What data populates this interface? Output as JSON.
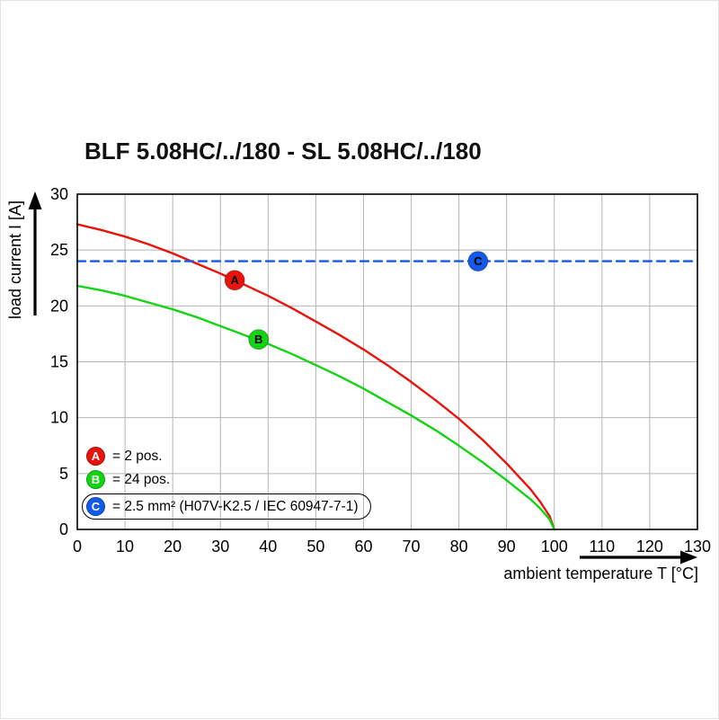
{
  "chart_data": {
    "type": "line",
    "title": "BLF 5.08HC/../180 - SL 5.08HC/../180",
    "xlabel": "ambient temperature T [°C]",
    "ylabel": "load current I [A]",
    "xlim": [
      0,
      130
    ],
    "ylim": [
      0,
      30
    ],
    "xticks": [
      0,
      10,
      20,
      30,
      40,
      50,
      60,
      70,
      80,
      90,
      100,
      110,
      120,
      130
    ],
    "yticks": [
      0,
      5,
      10,
      15,
      20,
      25,
      30
    ],
    "grid": true,
    "legend_position": "bottom-left-inside",
    "series": [
      {
        "name": "A",
        "legend_label": "= 2 pos.",
        "color": "#e8140b",
        "style": "solid",
        "marker": {
          "x": 33,
          "y": 22.3
        },
        "x": [
          0,
          5,
          10,
          15,
          20,
          25,
          30,
          35,
          40,
          45,
          50,
          55,
          60,
          65,
          70,
          75,
          80,
          85,
          90,
          95,
          97,
          99,
          100
        ],
        "y": [
          27.3,
          26.8,
          26.2,
          25.5,
          24.7,
          23.8,
          22.9,
          21.9,
          20.9,
          19.8,
          18.6,
          17.4,
          16.1,
          14.7,
          13.2,
          11.6,
          9.9,
          8.0,
          5.9,
          3.6,
          2.5,
          1.2,
          0
        ]
      },
      {
        "name": "B",
        "legend_label": "= 24 pos.",
        "color": "#12d412",
        "style": "solid",
        "marker": {
          "x": 38,
          "y": 17
        },
        "x": [
          0,
          5,
          10,
          15,
          20,
          25,
          30,
          35,
          40,
          45,
          50,
          55,
          60,
          65,
          70,
          75,
          80,
          85,
          90,
          95,
          97,
          99,
          100
        ],
        "y": [
          21.8,
          21.4,
          20.9,
          20.3,
          19.7,
          19.0,
          18.2,
          17.4,
          16.6,
          15.7,
          14.7,
          13.7,
          12.6,
          11.4,
          10.2,
          8.9,
          7.5,
          6.0,
          4.4,
          2.7,
          1.9,
          0.9,
          0
        ]
      },
      {
        "name": "C",
        "legend_label": "= 2.5 mm² (H07V-K2.5 / IEC 60947-7-1)",
        "color": "#1559e8",
        "style": "dashed",
        "boxed_legend": true,
        "marker": {
          "x": 84,
          "y": 24
        },
        "x": [
          0,
          130
        ],
        "y": [
          24,
          24
        ]
      }
    ]
  }
}
